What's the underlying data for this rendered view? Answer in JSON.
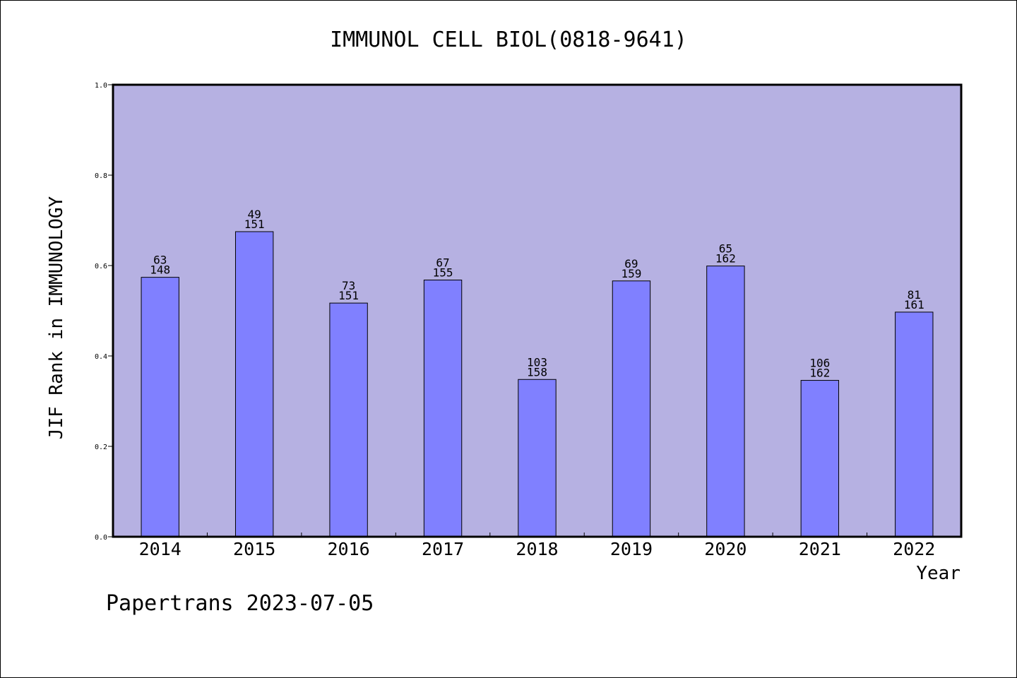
{
  "chart_data": {
    "type": "bar",
    "title": "IMMUNOL CELL BIOL(0818-9641)",
    "xlabel": "Year",
    "ylabel": "JIF Rank in IMMUNOLOGY",
    "ylim": [
      0,
      1.0
    ],
    "yticks": [
      "0.0",
      "0.2",
      "0.4",
      "0.6",
      "0.8",
      "1.0"
    ],
    "categories": [
      "2014",
      "2015",
      "2016",
      "2017",
      "2018",
      "2019",
      "2020",
      "2021",
      "2022"
    ],
    "series": [
      {
        "values": [
          0.574,
          0.675,
          0.517,
          0.568,
          0.348,
          0.566,
          0.599,
          0.346,
          0.497
        ],
        "rank": [
          "63",
          "49",
          "73",
          "67",
          "103",
          "69",
          "65",
          "106",
          "81"
        ],
        "total": [
          "148",
          "151",
          "151",
          "155",
          "158",
          "159",
          "162",
          "162",
          "161"
        ]
      }
    ],
    "grid": false,
    "colors": {
      "plot_background": "#b6b1e2",
      "bar_fill": "#8080ff",
      "bar_stroke": "#000000",
      "axis": "#000000"
    }
  },
  "footer": {
    "text": "Papertrans 2023-07-05"
  }
}
